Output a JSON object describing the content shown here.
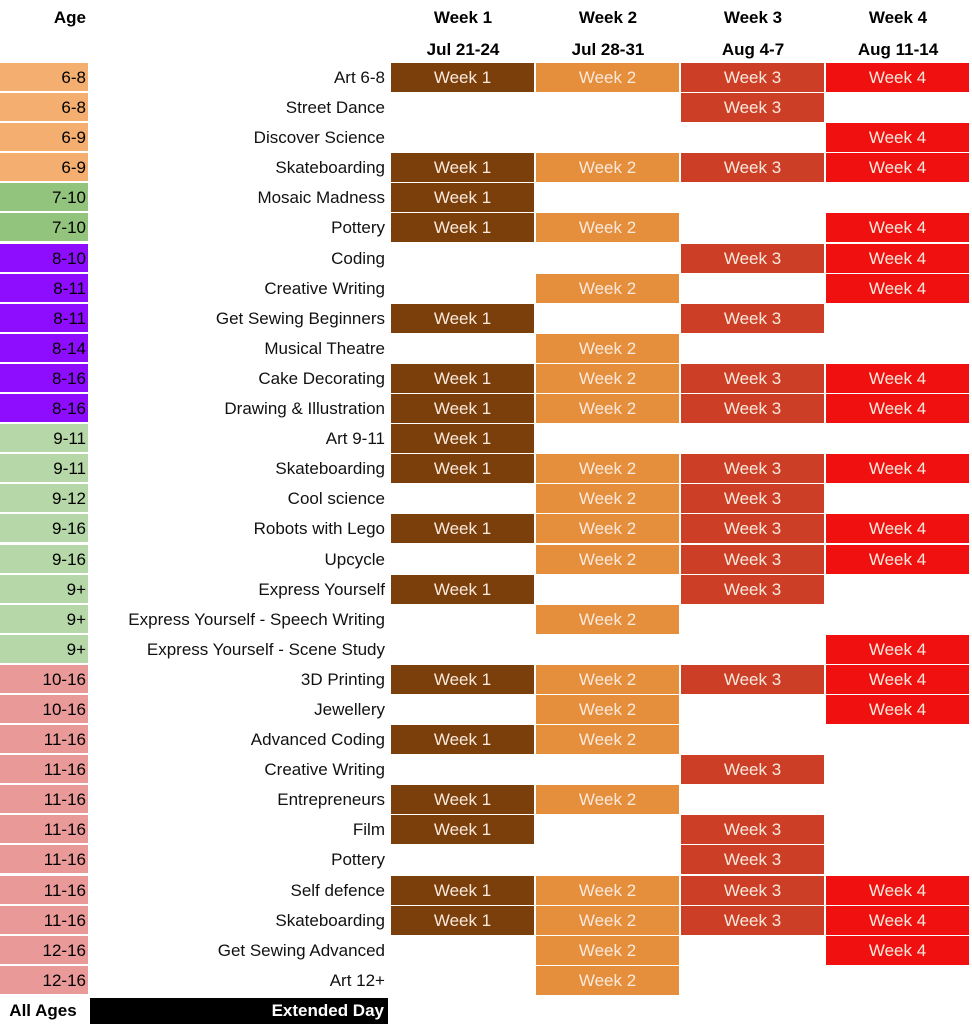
{
  "header": {
    "age_label": "Age",
    "weeks": [
      {
        "label": "Week 1",
        "dates": "Jul 21-24"
      },
      {
        "label": "Week 2",
        "dates": "Jul 28-31"
      },
      {
        "label": "Week 3",
        "dates": "Aug 4-7"
      },
      {
        "label": "Week 4",
        "dates": "Aug 11-14"
      }
    ]
  },
  "colors": {
    "age_6": "#f4ae6f",
    "age_7": "#93c47d",
    "age_8": "#8f0dff",
    "age_9": "#b6d7a8",
    "age_10": "#ea9999",
    "week1": "#7a3f0b",
    "week2": "#e58e3b",
    "week3": "#cc3e26",
    "week4": "#f01010"
  },
  "cell_labels": [
    "Week 1",
    "Week 2",
    "Week 3",
    "Week 4"
  ],
  "rows": [
    {
      "age": "6-8",
      "group": "age_6",
      "name": "Art 6-8",
      "weeks": [
        1,
        1,
        1,
        1
      ]
    },
    {
      "age": "6-8",
      "group": "age_6",
      "name": "Street Dance",
      "weeks": [
        0,
        0,
        1,
        0
      ]
    },
    {
      "age": "6-9",
      "group": "age_6",
      "name": "Discover Science",
      "weeks": [
        0,
        0,
        0,
        1
      ]
    },
    {
      "age": "6-9",
      "group": "age_6",
      "name": "Skateboarding",
      "weeks": [
        1,
        1,
        1,
        1
      ]
    },
    {
      "age": "7-10",
      "group": "age_7",
      "name": "Mosaic Madness",
      "weeks": [
        1,
        0,
        0,
        0
      ]
    },
    {
      "age": "7-10",
      "group": "age_7",
      "name": "Pottery",
      "weeks": [
        1,
        1,
        0,
        1
      ]
    },
    {
      "age": "8-10",
      "group": "age_8",
      "name": "Coding",
      "weeks": [
        0,
        0,
        1,
        1
      ]
    },
    {
      "age": "8-11",
      "group": "age_8",
      "name": "Creative Writing",
      "weeks": [
        0,
        1,
        0,
        1
      ]
    },
    {
      "age": "8-11",
      "group": "age_8",
      "name": "Get Sewing Beginners",
      "weeks": [
        1,
        0,
        1,
        0
      ]
    },
    {
      "age": "8-14",
      "group": "age_8",
      "name": "Musical Theatre",
      "weeks": [
        0,
        1,
        0,
        0
      ]
    },
    {
      "age": "8-16",
      "group": "age_8",
      "name": "Cake Decorating",
      "weeks": [
        1,
        1,
        1,
        1
      ]
    },
    {
      "age": "8-16",
      "group": "age_8",
      "name": "Drawing & Illustration",
      "weeks": [
        1,
        1,
        1,
        1
      ]
    },
    {
      "age": "9-11",
      "group": "age_9",
      "name": "Art 9-11",
      "weeks": [
        1,
        0,
        0,
        0
      ]
    },
    {
      "age": "9-11",
      "group": "age_9",
      "name": "Skateboarding",
      "weeks": [
        1,
        1,
        1,
        1
      ]
    },
    {
      "age": "9-12",
      "group": "age_9",
      "name": "Cool science",
      "weeks": [
        0,
        1,
        1,
        0
      ]
    },
    {
      "age": "9-16",
      "group": "age_9",
      "name": "Robots with Lego",
      "weeks": [
        1,
        1,
        1,
        1
      ]
    },
    {
      "age": "9-16",
      "group": "age_9",
      "name": "Upcycle",
      "weeks": [
        0,
        1,
        1,
        1
      ]
    },
    {
      "age": "9+",
      "group": "age_9",
      "name": "Express Yourself",
      "weeks": [
        1,
        0,
        1,
        0
      ]
    },
    {
      "age": "9+",
      "group": "age_9",
      "name": "Express Yourself - Speech Writing",
      "weeks": [
        0,
        1,
        0,
        0
      ]
    },
    {
      "age": "9+",
      "group": "age_9",
      "name": "Express Yourself - Scene Study",
      "weeks": [
        0,
        0,
        0,
        1
      ]
    },
    {
      "age": "10-16",
      "group": "age_10",
      "name": "3D Printing",
      "weeks": [
        1,
        1,
        1,
        1
      ]
    },
    {
      "age": "10-16",
      "group": "age_10",
      "name": "Jewellery",
      "weeks": [
        0,
        1,
        0,
        1
      ]
    },
    {
      "age": "11-16",
      "group": "age_10",
      "name": "Advanced Coding",
      "weeks": [
        1,
        1,
        0,
        0
      ]
    },
    {
      "age": "11-16",
      "group": "age_10",
      "name": "Creative Writing",
      "weeks": [
        0,
        0,
        1,
        0
      ]
    },
    {
      "age": "11-16",
      "group": "age_10",
      "name": "Entrepreneurs",
      "weeks": [
        1,
        1,
        0,
        0
      ]
    },
    {
      "age": "11-16",
      "group": "age_10",
      "name": "Film",
      "weeks": [
        1,
        0,
        1,
        0
      ]
    },
    {
      "age": "11-16",
      "group": "age_10",
      "name": "Pottery",
      "weeks": [
        0,
        0,
        1,
        0
      ]
    },
    {
      "age": "11-16",
      "group": "age_10",
      "name": "Self defence",
      "weeks": [
        1,
        1,
        1,
        1
      ]
    },
    {
      "age": "11-16",
      "group": "age_10",
      "name": "Skateboarding",
      "weeks": [
        1,
        1,
        1,
        1
      ]
    },
    {
      "age": "12-16",
      "group": "age_10",
      "name": "Get Sewing Advanced",
      "weeks": [
        0,
        1,
        0,
        1
      ]
    },
    {
      "age": "12-16",
      "group": "age_10",
      "name": "Art 12+",
      "weeks": [
        0,
        1,
        0,
        0
      ]
    }
  ],
  "extended": {
    "age": "All Ages",
    "name": "Extended Day"
  }
}
